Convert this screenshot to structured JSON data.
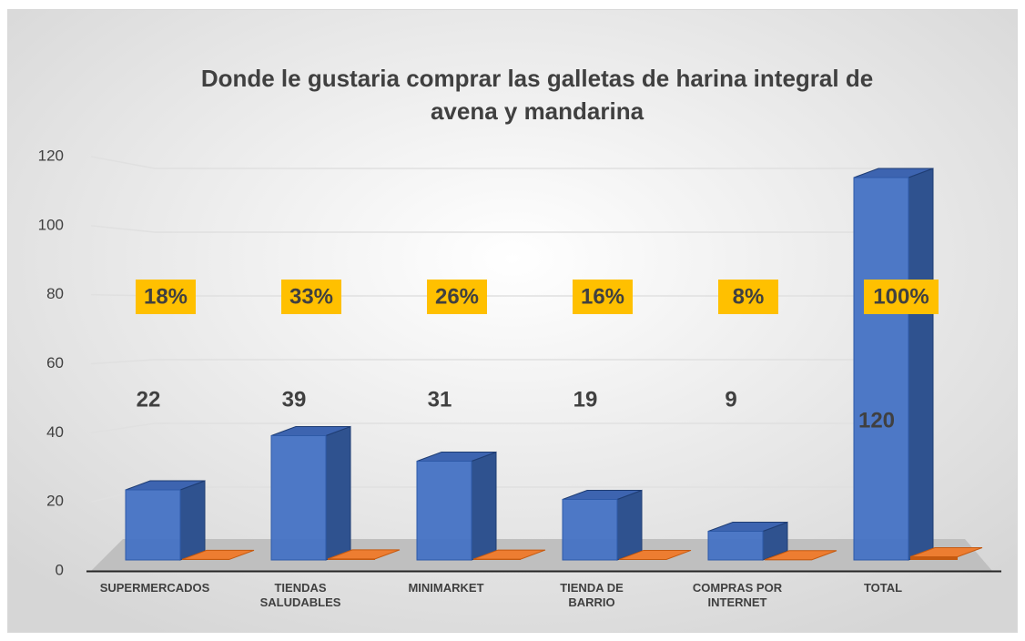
{
  "chart_data": {
    "type": "bar3d",
    "title": "Donde le gustaria comprar las galletas de harina integral de avena y mandarina",
    "categories": [
      "SUPERMERCADOS",
      "TIENDAS SALUDABLES",
      "MINIMARKET",
      "TIENDA DE BARRIO",
      "COMPRAS POR INTERNET",
      "TOTAL"
    ],
    "series": [
      {
        "color": "#4472c4",
        "values": [
          22,
          39,
          31,
          19,
          9,
          120
        ]
      },
      {
        "color": "#ed7d31",
        "values": [
          0.18,
          0.33,
          0.26,
          0.16,
          0.08,
          1.0
        ],
        "value_labels": [
          "18%",
          "33%",
          "26%",
          "16%",
          "8%",
          "100%"
        ]
      }
    ],
    "ylim": [
      0,
      120
    ],
    "yticks": [
      0,
      20,
      40,
      60,
      80,
      100,
      120
    ],
    "grid": true
  }
}
